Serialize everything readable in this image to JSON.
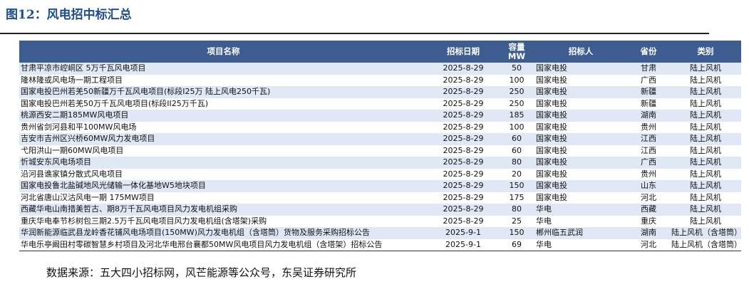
{
  "header": {
    "title": "图12：风电招中标汇总"
  },
  "table": {
    "columns": [
      "项目名称",
      "招标日期",
      "容量\nMW",
      "招标人",
      "省份",
      "类别"
    ],
    "rows": [
      [
        "甘肃平凉市崆峒区 5万千瓦风电项目",
        "2025-8-29",
        "50",
        "国家电投",
        "甘肃",
        "陆上风机"
      ],
      [
        "隆林隆或风电场一期工程项目",
        "2025-8-29",
        "100",
        "国家电投",
        "广西",
        "陆上风机"
      ],
      [
        "国家电投巴州若羌50新疆万千瓦风电项目(标段I25万 陆上风电250千瓦)",
        "2025-8-29",
        "250",
        "国家电投",
        "新疆",
        "陆上风机"
      ],
      [
        "国家电投巴州若羌50万千瓦风电项目(标段II25万千瓦)",
        "2025-8-29",
        "250",
        "国家电投",
        "新疆",
        "陆上风机"
      ],
      [
        "桃源西安二期185MW风电项目",
        "2025-8-29",
        "185",
        "国家电投",
        "湖南",
        "陆上风机"
      ],
      [
        "贵州省剑河县和平100MW风电场",
        "2025-8-29",
        "100",
        "国家电投",
        "贵州",
        "陆上风机"
      ],
      [
        "吉安市吉州区兴桥60MW风力发电项目",
        "2025-8-29",
        "60",
        "国家电投",
        "江西",
        "陆上风机"
      ],
      [
        "弋阳洪山一期60MW风电项目",
        "2025-8-29",
        "60",
        "国家电投",
        "江西",
        "陆上风机"
      ],
      [
        "忻城安东风电场项目",
        "2025-8-29",
        "80",
        "国家电投",
        "广西",
        "陆上风机"
      ],
      [
        "沿河县谯家镇分散式风电项目",
        "2025-8-29",
        "20",
        "国家电投",
        "贵州",
        "陆上风机"
      ],
      [
        "国家电投鲁北盐碱地风光储输一体化基地W5地块项目",
        "2025-8-29",
        "150",
        "国家电投",
        "山东",
        "陆上风机"
      ],
      [
        "河北省唐山汉沽风电一期 175MW项目",
        "2025-8-29",
        "175",
        "国家电投",
        "河北",
        "陆上风机"
      ],
      [
        "西藏华电山南措美哲古、期8万千瓦风电项目风力发电机组采购",
        "2025-8-29",
        "80",
        "华电",
        "西藏",
        "陆上风机"
      ],
      [
        "重庆华电奉节杉树包三期2.5万千瓦风电项目风力发电机组(含塔架)采购",
        "2025-8-29",
        "25",
        "华电",
        "重庆",
        "陆上风机"
      ],
      [
        "华润新能源临武县龙岭香花铺风电场项目(150MW)风力发电机组（含塔筒）货物及服务采购招标公告",
        "2025-9-1",
        "150",
        "郴州临五武润",
        "湖南",
        "陆上风机（含塔筒）"
      ],
      [
        "华电乐亭阚田村零碳智慧乡村项目及河北华电邢台襄都50MW风电项目风力发电机组（含塔架）招标公告",
        "2025-9-1",
        "69",
        "华电",
        "河北",
        "陆上风机（含塔筒）"
      ]
    ]
  },
  "footer": {
    "source": "数据来源：五大四小招标网，风芒能源等公众号，东吴证券研究所"
  }
}
